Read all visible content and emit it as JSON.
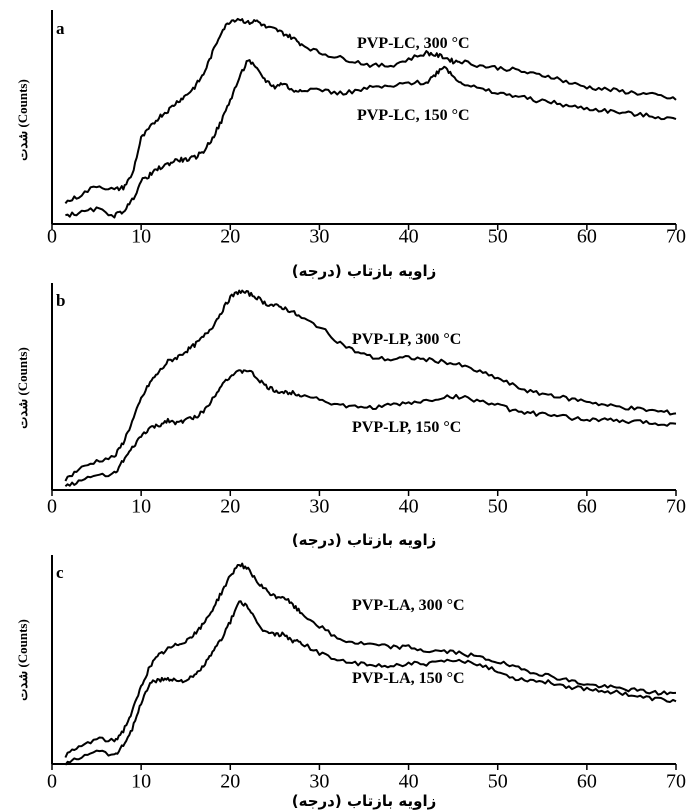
{
  "chart_data": [
    {
      "type": "line",
      "panel_label": "a",
      "xlabel": "زاویه بازتاب (درجه)",
      "ylabel": "شدت (Counts)",
      "xlim": [
        0,
        70
      ],
      "xticks": [
        0,
        10,
        20,
        30,
        40,
        50,
        60,
        70
      ],
      "grid": false,
      "series": [
        {
          "name": "PVP-LC, 300 °C",
          "x": [
            1.5,
            3,
            5,
            7,
            8,
            9,
            10,
            11,
            12,
            13,
            14,
            15,
            16,
            17,
            18,
            19,
            20,
            21,
            22,
            23,
            24,
            25,
            26,
            27,
            28,
            30,
            32,
            34,
            36,
            38,
            40,
            42,
            43,
            44,
            45,
            46,
            48,
            50,
            52,
            54,
            56,
            58,
            60,
            62,
            64,
            66,
            68,
            70
          ],
          "y": [
            0.1,
            0.13,
            0.18,
            0.16,
            0.17,
            0.23,
            0.4,
            0.45,
            0.5,
            0.53,
            0.57,
            0.6,
            0.64,
            0.7,
            0.8,
            0.9,
            0.95,
            0.96,
            0.94,
            0.95,
            0.92,
            0.91,
            0.89,
            0.87,
            0.84,
            0.8,
            0.78,
            0.76,
            0.74,
            0.74,
            0.77,
            0.8,
            0.79,
            0.78,
            0.76,
            0.76,
            0.74,
            0.73,
            0.72,
            0.7,
            0.69,
            0.66,
            0.64,
            0.63,
            0.62,
            0.61,
            0.6,
            0.58
          ]
        },
        {
          "name": "PVP-LC, 150 °C",
          "x": [
            1.5,
            3,
            5,
            7,
            8,
            9,
            10,
            11,
            12,
            13,
            14,
            15,
            16,
            17,
            18,
            19,
            20,
            21,
            22,
            23,
            24,
            25,
            26,
            27,
            28,
            30,
            32,
            34,
            36,
            38,
            40,
            42,
            43,
            44,
            45,
            46,
            48,
            50,
            52,
            54,
            56,
            58,
            60,
            62,
            64,
            66,
            68,
            70
          ],
          "y": [
            0.04,
            0.05,
            0.07,
            0.04,
            0.06,
            0.11,
            0.2,
            0.23,
            0.26,
            0.28,
            0.3,
            0.3,
            0.31,
            0.34,
            0.4,
            0.48,
            0.58,
            0.68,
            0.77,
            0.72,
            0.67,
            0.64,
            0.66,
            0.62,
            0.63,
            0.63,
            0.61,
            0.62,
            0.64,
            0.64,
            0.66,
            0.66,
            0.7,
            0.74,
            0.69,
            0.66,
            0.63,
            0.61,
            0.6,
            0.58,
            0.57,
            0.55,
            0.54,
            0.53,
            0.52,
            0.51,
            0.5,
            0.49
          ]
        }
      ]
    },
    {
      "type": "line",
      "panel_label": "b",
      "xlabel": "زاویه بازتاب (درجه)",
      "ylabel": "شدت (Counts)",
      "xlim": [
        0,
        70
      ],
      "xticks": [
        0,
        10,
        20,
        30,
        40,
        50,
        60,
        70
      ],
      "grid": false,
      "series": [
        {
          "name": "PVP-LP, 300 °C",
          "x": [
            1.5,
            3,
            5,
            7,
            8,
            9,
            10,
            11,
            12,
            13,
            14,
            15,
            16,
            17,
            18,
            19,
            20,
            21,
            22,
            23,
            24,
            25,
            26,
            27,
            28,
            30,
            32,
            34,
            36,
            38,
            40,
            42,
            44,
            46,
            48,
            50,
            52,
            54,
            56,
            58,
            60,
            62,
            64,
            66,
            68,
            70
          ],
          "y": [
            0.05,
            0.1,
            0.14,
            0.16,
            0.23,
            0.33,
            0.44,
            0.52,
            0.57,
            0.62,
            0.64,
            0.67,
            0.7,
            0.74,
            0.79,
            0.86,
            0.93,
            0.96,
            0.95,
            0.93,
            0.9,
            0.89,
            0.88,
            0.86,
            0.83,
            0.79,
            0.72,
            0.67,
            0.64,
            0.63,
            0.64,
            0.63,
            0.62,
            0.6,
            0.57,
            0.54,
            0.5,
            0.47,
            0.46,
            0.44,
            0.43,
            0.41,
            0.4,
            0.39,
            0.38,
            0.37
          ]
        },
        {
          "name": "PVP-LP, 150 °C",
          "x": [
            1.5,
            3,
            5,
            7,
            8,
            9,
            10,
            11,
            12,
            13,
            14,
            15,
            16,
            17,
            18,
            19,
            20,
            21,
            22,
            23,
            24,
            25,
            26,
            27,
            28,
            30,
            32,
            34,
            36,
            38,
            40,
            42,
            44,
            46,
            48,
            50,
            52,
            54,
            56,
            58,
            60,
            62,
            64,
            66,
            68,
            70
          ],
          "y": [
            0.02,
            0.04,
            0.07,
            0.08,
            0.14,
            0.2,
            0.26,
            0.3,
            0.31,
            0.34,
            0.32,
            0.34,
            0.35,
            0.38,
            0.44,
            0.51,
            0.55,
            0.57,
            0.58,
            0.54,
            0.5,
            0.48,
            0.47,
            0.47,
            0.46,
            0.44,
            0.41,
            0.4,
            0.4,
            0.41,
            0.42,
            0.43,
            0.45,
            0.45,
            0.43,
            0.41,
            0.38,
            0.37,
            0.36,
            0.35,
            0.34,
            0.34,
            0.33,
            0.33,
            0.32,
            0.32
          ]
        }
      ]
    },
    {
      "type": "line",
      "panel_label": "c",
      "xlabel": "زاویه بازتاب (درجه)",
      "ylabel": "شدت (Counts)",
      "xlim": [
        0,
        70
      ],
      "xticks": [
        0,
        10,
        20,
        30,
        40,
        50,
        60,
        70
      ],
      "grid": false,
      "series": [
        {
          "name": "PVP-LA, 300 °C",
          "x": [
            1.5,
            3,
            5,
            7,
            8,
            9,
            10,
            11,
            12,
            13,
            14,
            15,
            16,
            17,
            18,
            19,
            20,
            21,
            22,
            23,
            24,
            25,
            26,
            27,
            28,
            30,
            32,
            34,
            36,
            38,
            40,
            42,
            44,
            46,
            48,
            50,
            52,
            54,
            56,
            58,
            60,
            62,
            64,
            66,
            68,
            70
          ],
          "y": [
            0.04,
            0.08,
            0.12,
            0.11,
            0.16,
            0.25,
            0.37,
            0.47,
            0.52,
            0.55,
            0.57,
            0.59,
            0.62,
            0.67,
            0.74,
            0.82,
            0.9,
            0.96,
            0.93,
            0.87,
            0.83,
            0.8,
            0.8,
            0.76,
            0.72,
            0.66,
            0.6,
            0.58,
            0.57,
            0.56,
            0.56,
            0.54,
            0.54,
            0.53,
            0.51,
            0.49,
            0.46,
            0.44,
            0.42,
            0.4,
            0.38,
            0.37,
            0.36,
            0.35,
            0.34,
            0.34
          ]
        },
        {
          "name": "PVP-LA, 150 °C",
          "x": [
            1.5,
            3,
            5,
            7,
            8,
            9,
            10,
            11,
            12,
            13,
            14,
            15,
            16,
            17,
            18,
            19,
            20,
            21,
            22,
            23,
            24,
            25,
            26,
            27,
            28,
            30,
            32,
            34,
            36,
            38,
            40,
            42,
            44,
            46,
            48,
            50,
            52,
            54,
            56,
            58,
            60,
            62,
            64,
            66,
            68,
            70
          ],
          "y": [
            0.0,
            0.03,
            0.07,
            0.04,
            0.09,
            0.17,
            0.29,
            0.39,
            0.4,
            0.41,
            0.4,
            0.4,
            0.42,
            0.47,
            0.53,
            0.6,
            0.68,
            0.78,
            0.75,
            0.67,
            0.63,
            0.62,
            0.62,
            0.59,
            0.58,
            0.53,
            0.5,
            0.48,
            0.47,
            0.47,
            0.48,
            0.48,
            0.49,
            0.49,
            0.48,
            0.44,
            0.41,
            0.4,
            0.39,
            0.37,
            0.36,
            0.35,
            0.34,
            0.32,
            0.31,
            0.3
          ]
        }
      ]
    }
  ]
}
